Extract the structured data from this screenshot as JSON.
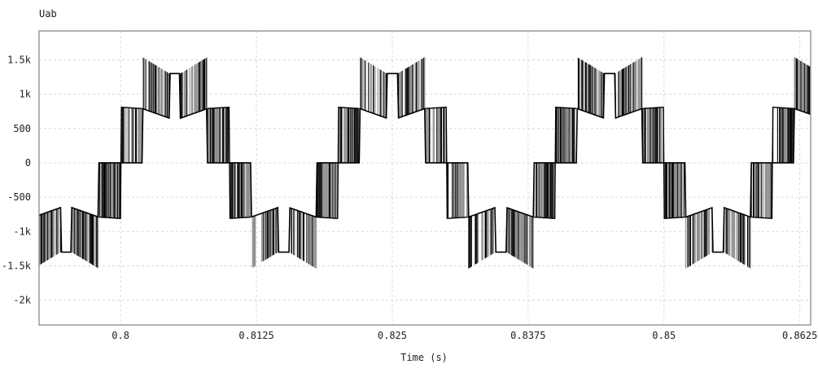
{
  "chart_data": {
    "type": "line",
    "title": "Uab",
    "xlabel": "Time (s)",
    "ylabel": "",
    "xlim": [
      0.7925,
      0.8635
    ],
    "ylim": [
      -2360,
      1920
    ],
    "xticks": [
      0.8,
      0.8125,
      0.825,
      0.8375,
      0.85,
      0.8625
    ],
    "xtick_labels": [
      "0.8",
      "0.8125",
      "0.825",
      "0.8375",
      "0.85",
      "0.8625"
    ],
    "yticks": [
      1500,
      1000,
      500,
      0,
      -500,
      -1000,
      -1500,
      -2000
    ],
    "ytick_labels": [
      "1.5k",
      "1k",
      "500",
      "0",
      "-500",
      "-1k",
      "-1.5k",
      "-2k"
    ],
    "grid": true,
    "colors": {
      "trace": "#000000",
      "trace_alt": "#8a8a8a",
      "grid": "#d8d8d8",
      "axis": "#808080"
    },
    "series": [
      {
        "name": "Uab",
        "kind": "multilevel PWM line voltage",
        "fundamental_period": 0.02,
        "positive_half_start": 0.82,
        "half_period_envelope": [
          {
            "from": 0.0,
            "to": 0.002,
            "low": [
              0,
              0
            ],
            "high": [
              810,
              790
            ]
          },
          {
            "from": 0.002,
            "to": 0.0045,
            "low": [
              790,
              650
            ],
            "high": [
              1540,
              1300
            ]
          },
          {
            "from": 0.0045,
            "to": 0.0055,
            "low": [
              1300,
              1300
            ],
            "high": [
              1300,
              1300
            ]
          },
          {
            "from": 0.0055,
            "to": 0.008,
            "low": [
              650,
              790
            ],
            "high": [
              1300,
              1540
            ]
          },
          {
            "from": 0.008,
            "to": 0.01,
            "low": [
              0,
              0
            ],
            "high": [
              790,
              810
            ]
          }
        ]
      }
    ]
  }
}
